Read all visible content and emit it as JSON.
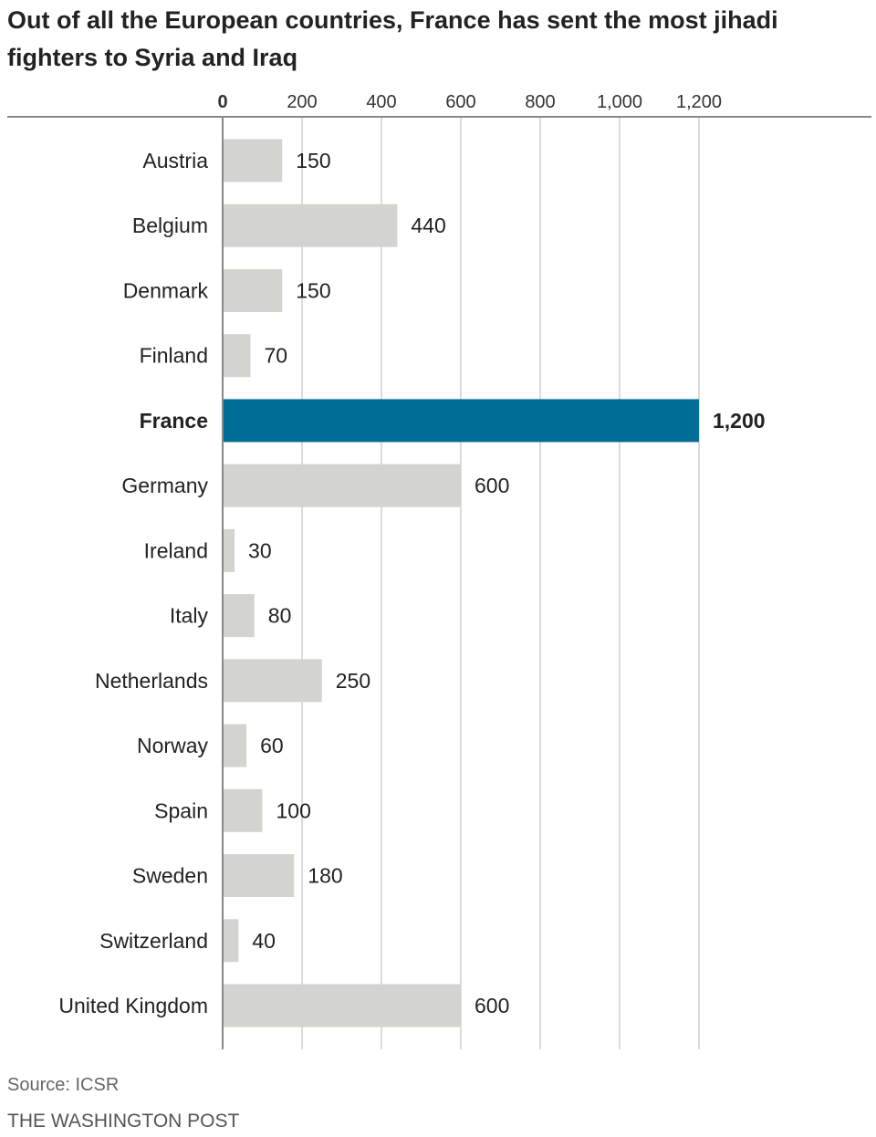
{
  "chart_data": {
    "type": "bar",
    "orientation": "horizontal",
    "title": "Out of all the European countries, France has sent the most jihadi fighters to Syria and Iraq",
    "categories": [
      "Austria",
      "Belgium",
      "Denmark",
      "Finland",
      "France",
      "Germany",
      "Ireland",
      "Italy",
      "Netherlands",
      "Norway",
      "Spain",
      "Sweden",
      "Switzerland",
      "United Kingdom"
    ],
    "values": [
      150,
      440,
      150,
      70,
      1200,
      600,
      30,
      80,
      250,
      60,
      100,
      180,
      40,
      600
    ],
    "value_labels": [
      "150",
      "440",
      "150",
      "70",
      "1,200",
      "600",
      "30",
      "80",
      "250",
      "60",
      "100",
      "180",
      "40",
      "600"
    ],
    "highlight": "France",
    "xlim": [
      0,
      1200
    ],
    "ticks": [
      0,
      200,
      400,
      600,
      800,
      1000,
      1200
    ],
    "tick_labels": [
      "0",
      "200",
      "400",
      "600",
      "800",
      "1,000",
      "1,200"
    ],
    "grid": true,
    "xlabel": "",
    "ylabel": ""
  },
  "colors": {
    "bar": "#d3d3cf",
    "highlight": "#006d96",
    "grid": "#d0d0d0",
    "axis": "#888888"
  },
  "footer": {
    "source": "Source: ICSR",
    "credit": "THE WASHINGTON POST"
  }
}
